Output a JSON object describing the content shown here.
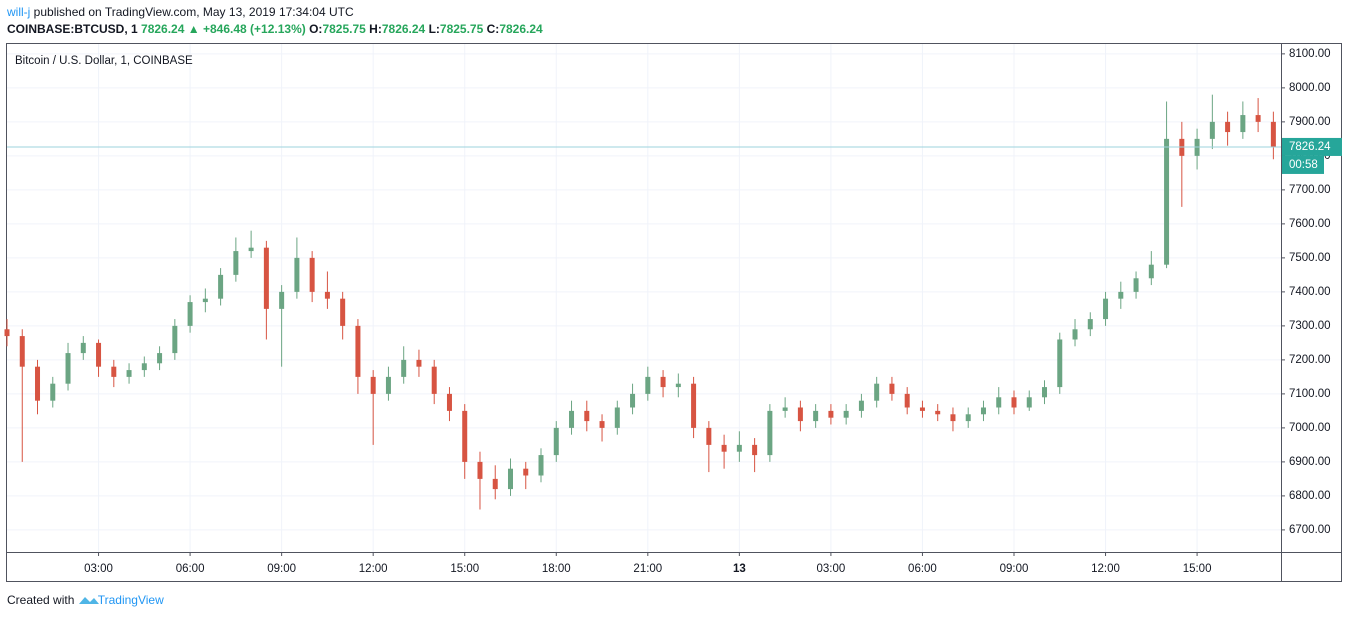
{
  "header": {
    "author": "will-j",
    "published": "published on TradingView.com, May 13, 2019 17:34:04 UTC",
    "symbol": "COINBASE:BTCUSD, 1",
    "last": "7826.24",
    "arrow": "▲",
    "change": "+846.48 (+12.13%)",
    "o_label": "O:",
    "o": "7825.75",
    "h_label": "H:",
    "h": "7826.24",
    "l_label": "L:",
    "l": "7825.75",
    "c_label": "C:",
    "c": "7826.24"
  },
  "footer": {
    "created": "Created with",
    "brand": "TradingView"
  },
  "chart_data": {
    "type": "candlestick",
    "legend_title": "Bitcoin / U.S. Dollar, 1, COINBASE",
    "countdown": "00:58",
    "up_color": "#6ba583",
    "down_color": "#d75442",
    "grid": true,
    "x": [
      0,
      0.5,
      1,
      1.5,
      2,
      2.5,
      3,
      3.5,
      4,
      4.5,
      5,
      5.5,
      6,
      6.5,
      7,
      7.5,
      8,
      8.5,
      9,
      9.5,
      10,
      10.5,
      11,
      11.5,
      12,
      12.5,
      13,
      13.5,
      14,
      14.5,
      15,
      15.5,
      16,
      16.5,
      17,
      17.5,
      18,
      18.5,
      19,
      19.5,
      20,
      20.5,
      21,
      21.5,
      22,
      22.5,
      23,
      23.5,
      24,
      24.5,
      25,
      25.5,
      26,
      26.5,
      27,
      27.5,
      28,
      28.5,
      29,
      29.5,
      30,
      30.5,
      31,
      31.5,
      32,
      32.5,
      33,
      33.5,
      34,
      34.5,
      35,
      35.5,
      36,
      36.5,
      37,
      37.5,
      38,
      38.5,
      39,
      39.5,
      40,
      40.5,
      41,
      41.5
    ],
    "open": [
      7290,
      7270,
      7180,
      7080,
      7130,
      7220,
      7250,
      7180,
      7150,
      7170,
      7190,
      7220,
      7300,
      7370,
      7380,
      7450,
      7520,
      7530,
      7350,
      7400,
      7500,
      7400,
      7380,
      7300,
      7150,
      7100,
      7150,
      7200,
      7180,
      7100,
      7050,
      6900,
      6850,
      6820,
      6880,
      6860,
      6920,
      7000,
      7050,
      7020,
      7000,
      7060,
      7100,
      7150,
      7120,
      7130,
      7000,
      6950,
      6930,
      6950,
      6920,
      7050,
      7060,
      7020,
      7050,
      7030,
      7050,
      7080,
      7130,
      7100,
      7060,
      7050,
      7040,
      7020,
      7040,
      7060,
      7090,
      7060,
      7090,
      7120,
      7260,
      7290,
      7320,
      7380,
      7400,
      7440,
      7480,
      7850,
      7800,
      7850,
      7900,
      7870,
      7920,
      7900
    ],
    "high": [
      7320,
      7290,
      7200,
      7150,
      7250,
      7270,
      7260,
      7200,
      7190,
      7210,
      7240,
      7320,
      7390,
      7410,
      7470,
      7560,
      7580,
      7550,
      7420,
      7560,
      7520,
      7460,
      7400,
      7320,
      7170,
      7180,
      7240,
      7230,
      7200,
      7120,
      7070,
      6930,
      6890,
      6910,
      6900,
      6940,
      7020,
      7080,
      7080,
      7040,
      7080,
      7130,
      7180,
      7170,
      7160,
      7150,
      7020,
      6980,
      6990,
      6970,
      7070,
      7090,
      7080,
      7070,
      7070,
      7070,
      7100,
      7150,
      7150,
      7120,
      7080,
      7070,
      7060,
      7060,
      7080,
      7120,
      7110,
      7110,
      7140,
      7280,
      7320,
      7340,
      7400,
      7430,
      7460,
      7520,
      7960,
      7900,
      7880,
      7980,
      7930,
      7960,
      7970,
      7930
    ],
    "low": [
      7240,
      6900,
      7040,
      7060,
      7110,
      7200,
      7150,
      7120,
      7130,
      7150,
      7170,
      7200,
      7280,
      7340,
      7360,
      7430,
      7500,
      7260,
      7180,
      7380,
      7370,
      7350,
      7260,
      7100,
      6950,
      7080,
      7130,
      7150,
      7070,
      7020,
      6850,
      6760,
      6790,
      6800,
      6820,
      6840,
      6900,
      6980,
      6990,
      6960,
      6980,
      7040,
      7080,
      7090,
      7090,
      6970,
      6870,
      6880,
      6900,
      6870,
      6900,
      7030,
      6990,
      7000,
      7010,
      7010,
      7030,
      7060,
      7080,
      7040,
      7030,
      7020,
      6990,
      7000,
      7020,
      7040,
      7040,
      7050,
      7070,
      7100,
      7240,
      7270,
      7300,
      7350,
      7380,
      7420,
      7470,
      7650,
      7760,
      7820,
      7830,
      7850,
      7870,
      7790
    ],
    "close": [
      7270,
      7180,
      7080,
      7130,
      7220,
      7250,
      7180,
      7150,
      7170,
      7190,
      7220,
      7300,
      7370,
      7380,
      7450,
      7520,
      7530,
      7350,
      7400,
      7500,
      7400,
      7380,
      7300,
      7150,
      7100,
      7150,
      7200,
      7180,
      7100,
      7050,
      6900,
      6850,
      6820,
      6880,
      6860,
      6920,
      7000,
      7050,
      7020,
      7000,
      7060,
      7100,
      7150,
      7120,
      7130,
      7000,
      6950,
      6930,
      6950,
      6920,
      7050,
      7060,
      7020,
      7050,
      7030,
      7050,
      7080,
      7130,
      7100,
      7060,
      7050,
      7040,
      7020,
      7040,
      7060,
      7090,
      7060,
      7090,
      7120,
      7260,
      7290,
      7320,
      7380,
      7400,
      7440,
      7480,
      7850,
      7800,
      7850,
      7900,
      7870,
      7920,
      7900,
      7826.24
    ],
    "xlim": [
      0,
      41.75
    ],
    "xticks": [
      {
        "value": 3,
        "label": "03:00"
      },
      {
        "value": 6,
        "label": "06:00"
      },
      {
        "value": 9,
        "label": "09:00"
      },
      {
        "value": 12,
        "label": "12:00"
      },
      {
        "value": 15,
        "label": "15:00"
      },
      {
        "value": 18,
        "label": "18:00"
      },
      {
        "value": 21,
        "label": "21:00"
      },
      {
        "value": 24,
        "label": "13"
      },
      {
        "value": 27,
        "label": "03:00"
      },
      {
        "value": 30,
        "label": "06:00"
      },
      {
        "value": 33,
        "label": "09:00"
      },
      {
        "value": 36,
        "label": "12:00"
      },
      {
        "value": 39,
        "label": "15:00"
      }
    ],
    "ylim": [
      6635,
      8129
    ],
    "yticks": [
      {
        "value": 6700,
        "label": "6700.00"
      },
      {
        "value": 6800,
        "label": "6800.00"
      },
      {
        "value": 6900,
        "label": "6900.00"
      },
      {
        "value": 7000,
        "label": "7000.00"
      },
      {
        "value": 7100,
        "label": "7100.00"
      },
      {
        "value": 7200,
        "label": "7200.00"
      },
      {
        "value": 7300,
        "label": "7300.00"
      },
      {
        "value": 7400,
        "label": "7400.00"
      },
      {
        "value": 7500,
        "label": "7500.00"
      },
      {
        "value": 7600,
        "label": "7600.00"
      },
      {
        "value": 7700,
        "label": "7700.00"
      },
      {
        "value": 7800,
        "label": "7800.00"
      },
      {
        "value": 7900,
        "label": "7900.00"
      },
      {
        "value": 8000,
        "label": "8000.00"
      },
      {
        "value": 8100,
        "label": "8100.00"
      }
    ]
  }
}
